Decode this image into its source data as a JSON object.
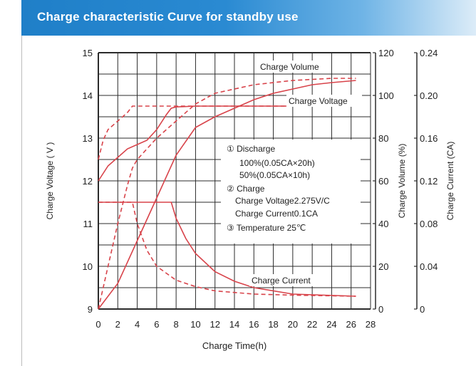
{
  "header": {
    "title": "Charge characteristic Curve for standby use"
  },
  "colors": {
    "header": "#1f7fc8",
    "curve": "#d8434a",
    "grid": "#2b2b2b",
    "legend_bg": "#ffffff"
  },
  "chart_data": {
    "type": "line",
    "xlabel": "Charge Time(h)",
    "ylabel_left": "Charge Voltage ( V )",
    "ylabel_right1": "Charge Volume (%)",
    "ylabel_right2": "Charge Current (CA)",
    "x_ticks": [
      "0",
      "2",
      "4",
      "6",
      "8",
      "10",
      "12",
      "14",
      "16",
      "18",
      "20",
      "22",
      "24",
      "26",
      "28"
    ],
    "y_left_ticks": [
      "15",
      "14",
      "13",
      "12",
      "11",
      "10",
      "9"
    ],
    "y_volume_ticks": [
      "120",
      "100",
      "80",
      "60",
      "40",
      "20",
      "0"
    ],
    "y_current_ticks": [
      "0.24",
      "0.20",
      "0.16",
      "0.12",
      "0.08",
      "0.04",
      "0"
    ],
    "xlim": [
      0,
      28
    ],
    "ylim_voltage": [
      9,
      15
    ],
    "ylim_volume": [
      0,
      120
    ],
    "ylim_current": [
      0,
      0.24
    ],
    "grid": true,
    "curve_labels": {
      "volume": "Charge Volume",
      "voltage": "Charge Voltage",
      "current": "Charge Current"
    },
    "series": [
      {
        "name": "Charge Voltage",
        "axis": "voltage",
        "style": "solid",
        "x": [
          0,
          1,
          2,
          3,
          4,
          5,
          6,
          7,
          7.5,
          8,
          10,
          14,
          20,
          26.5
        ],
        "y": [
          12.0,
          12.35,
          12.55,
          12.75,
          12.85,
          12.95,
          13.2,
          13.55,
          13.7,
          13.73,
          13.75,
          13.75,
          13.75,
          13.75
        ]
      },
      {
        "name": "Charge Voltage",
        "axis": "voltage",
        "style": "dashed",
        "x": [
          0,
          0.5,
          1,
          2,
          3,
          3.5,
          4,
          6,
          10,
          14,
          20,
          26.5
        ],
        "y": [
          12.5,
          12.95,
          13.2,
          13.4,
          13.6,
          13.75,
          13.75,
          13.75,
          13.75,
          13.75,
          13.75,
          13.75
        ]
      },
      {
        "name": "Charge Volume",
        "axis": "volume",
        "style": "solid",
        "x": [
          0,
          2,
          4,
          6,
          8,
          10,
          12,
          14,
          16,
          18,
          20,
          22,
          24,
          26.5
        ],
        "y": [
          0,
          12,
          32,
          52,
          72,
          85,
          90,
          94,
          98,
          101,
          103,
          105,
          106,
          107
        ]
      },
      {
        "name": "Charge Volume",
        "axis": "volume",
        "style": "dashed",
        "x": [
          0,
          1,
          2,
          3,
          3.5,
          4,
          6,
          8,
          10,
          12,
          16,
          20,
          24,
          26.5
        ],
        "y": [
          0,
          20,
          40,
          58,
          66,
          70,
          80,
          88,
          96,
          101,
          105,
          107,
          108,
          108
        ]
      },
      {
        "name": "Charge Current",
        "axis": "current",
        "style": "solid",
        "x": [
          0,
          2,
          4,
          6,
          7.5,
          8,
          9,
          10,
          12,
          14,
          16,
          20,
          26.5
        ],
        "y": [
          0.1,
          0.1,
          0.1,
          0.1,
          0.1,
          0.085,
          0.066,
          0.052,
          0.035,
          0.026,
          0.02,
          0.014,
          0.012
        ]
      },
      {
        "name": "Charge Current",
        "axis": "current",
        "style": "dashed",
        "x": [
          0,
          1,
          2,
          3,
          3.5,
          4,
          5,
          6,
          8,
          10,
          12,
          16,
          20,
          26.5
        ],
        "y": [
          0.1,
          0.1,
          0.1,
          0.1,
          0.1,
          0.08,
          0.055,
          0.04,
          0.027,
          0.021,
          0.017,
          0.014,
          0.013,
          0.012
        ]
      }
    ],
    "annotation": [
      "① Discharge",
      "100%(0.05CA×20h)",
      "50%(0.05CA×10h)",
      "② Charge",
      "Charge Voltage2.275V/C",
      "Charge Current0.1CA",
      "③ Temperature 25℃"
    ]
  }
}
